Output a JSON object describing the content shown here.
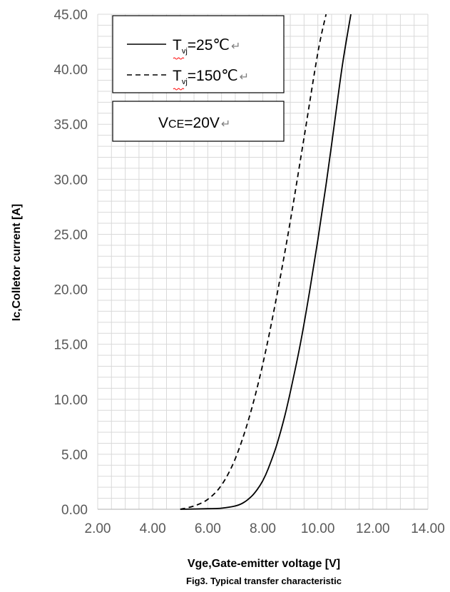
{
  "chart_data": {
    "type": "line",
    "title": "",
    "xlabel": "Vge,Gate-emitter voltage [V]",
    "ylabel": "Ic,Colletor current [A]",
    "caption": "Fig3. Typical transfer characteristic",
    "xlim": [
      2,
      14
    ],
    "ylim": [
      0,
      45
    ],
    "xticks": [
      "2.00",
      "4.00",
      "6.00",
      "8.00",
      "10.00",
      "12.00",
      "14.00"
    ],
    "yticks": [
      "0.00",
      "5.00",
      "10.00",
      "15.00",
      "20.00",
      "25.00",
      "30.00",
      "35.00",
      "40.00",
      "45.00"
    ],
    "grid": true,
    "legend_position": "top-left",
    "series": [
      {
        "name": "T_vj=25℃",
        "line_style": "solid",
        "x": [
          5.0,
          6.0,
          6.5,
          7.0,
          7.3,
          7.6,
          7.8,
          8.0,
          8.2,
          8.5,
          8.8,
          9.1,
          9.4,
          9.7,
          10.0,
          10.3,
          10.6,
          10.9,
          11.2
        ],
        "y": [
          0.0,
          0.05,
          0.1,
          0.3,
          0.6,
          1.2,
          1.8,
          2.6,
          3.7,
          5.8,
          8.5,
          11.8,
          15.5,
          19.8,
          24.5,
          29.5,
          35.0,
          40.5,
          45.0
        ]
      },
      {
        "name": "T_vj=150℃",
        "line_style": "dashed",
        "x": [
          5.0,
          5.5,
          6.0,
          6.5,
          7.0,
          7.5,
          8.0,
          8.5,
          9.0,
          9.5,
          10.0,
          10.3
        ],
        "y": [
          0.0,
          0.3,
          0.9,
          2.2,
          4.6,
          8.3,
          13.2,
          19.3,
          26.2,
          33.8,
          41.5,
          45.0
        ]
      }
    ],
    "legend_labels": {
      "series1_prefix": "T",
      "series1_sub": "vj",
      "series1_suffix": "=25℃",
      "series2_prefix": "T",
      "series2_sub": "vj",
      "series2_suffix": "=150℃",
      "return_mark": "↵"
    },
    "annotation": {
      "prefix": "V",
      "sub": "CE",
      "suffix": "=20V"
    },
    "colors": {
      "line": "#000000",
      "grid": "#d9d9d9",
      "tick_text": "#595959",
      "axis": "#bfbfbf",
      "spellcheck": "#ff0000"
    }
  }
}
